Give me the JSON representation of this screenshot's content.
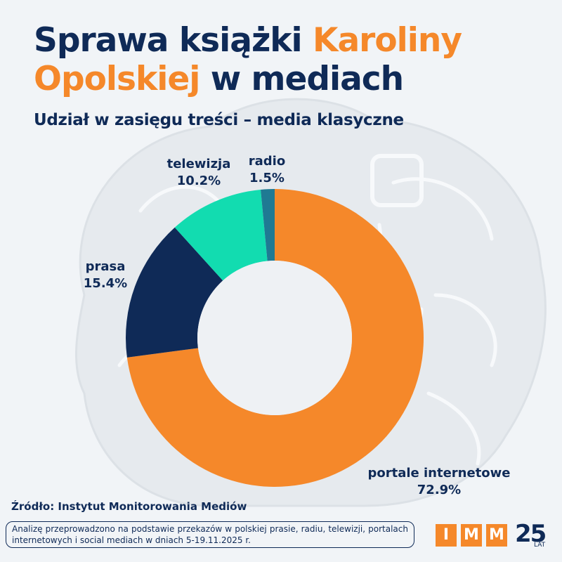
{
  "header": {
    "title_part1": "Sprawa książki ",
    "title_highlight": "Karoliny Opolskiej",
    "title_part2": " w mediach",
    "subtitle": "Udział w zasięgu treści – media klasyczne"
  },
  "colors": {
    "portale": "#f5882a",
    "prasa": "#0f2a57",
    "telewizja": "#12dcb0",
    "radio": "#1f7a93",
    "accent": "#f5882a"
  },
  "chart_data": {
    "type": "pie",
    "variant": "donut",
    "title": "Udział w zasięgu treści – media klasyczne",
    "slices": [
      {
        "label": "portale internetowe",
        "value": 72.9,
        "display": "72.9%"
      },
      {
        "label": "prasa",
        "value": 15.4,
        "display": "15.4%"
      },
      {
        "label": "telewizja",
        "value": 10.2,
        "display": "10.2%"
      },
      {
        "label": "radio",
        "value": 1.5,
        "display": "1.5%"
      }
    ]
  },
  "footer": {
    "source": "Źródło: Instytut Monitorowania Mediów",
    "note": "Analizę przeprowadzono na podstawie przekazów w polskiej prasie, radiu, telewizji, portalach internetowych i social mediach w dniach 5-19.11.2025 r.",
    "logo_letters": [
      "I",
      "M",
      "M"
    ],
    "logo_number": "25",
    "logo_suffix": "LAT"
  }
}
